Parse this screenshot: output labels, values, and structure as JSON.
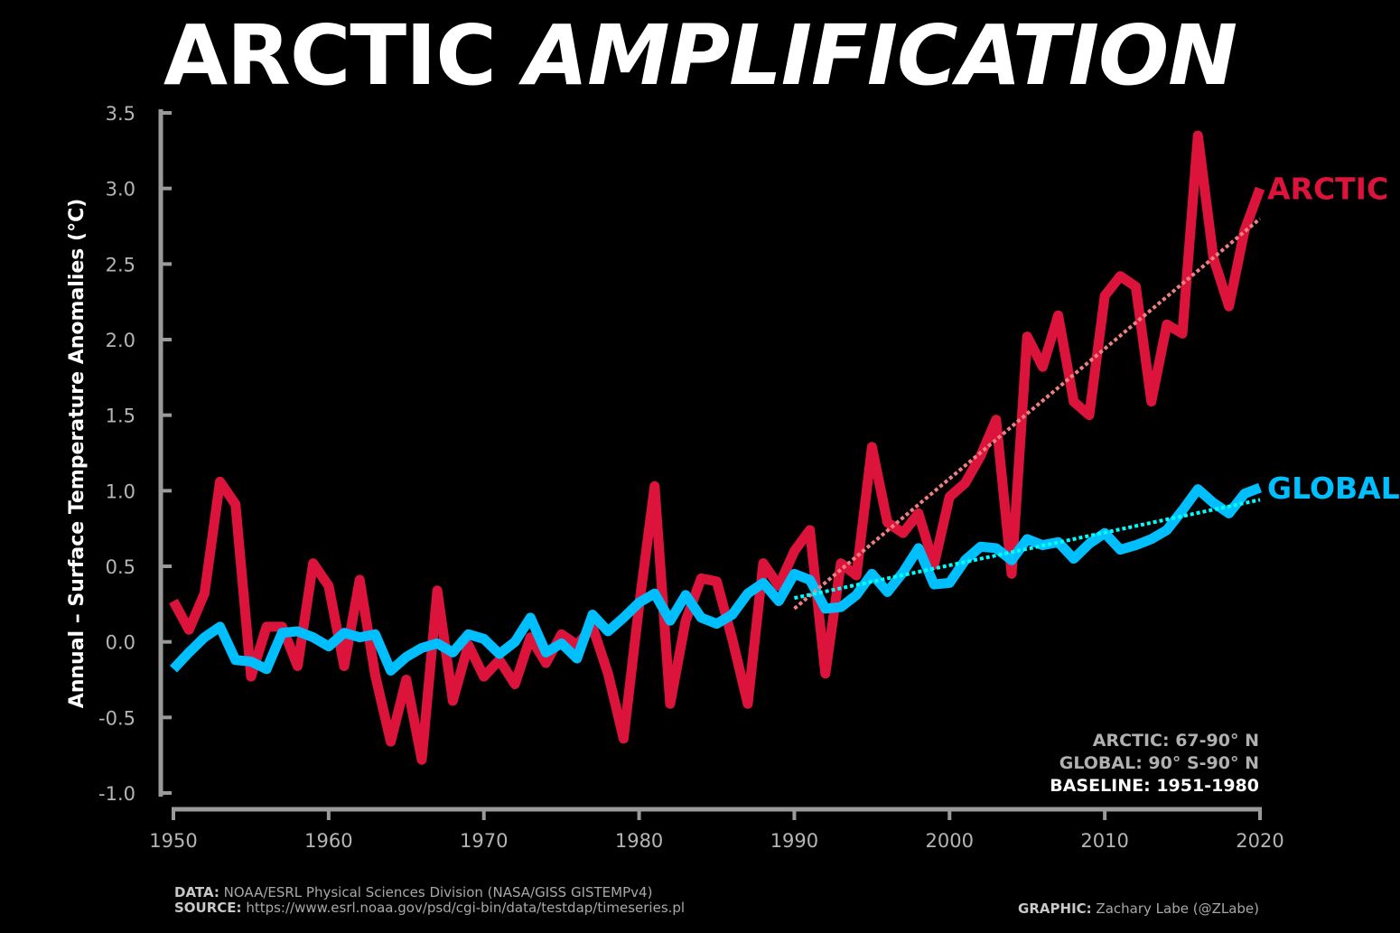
{
  "title": {
    "part1": "ARCTIC",
    "part2": "AMPLIFICATION"
  },
  "colors": {
    "background": "#000000",
    "arctic": "#dc143c",
    "global": "#00bfff",
    "arctic_trend": "#f08080",
    "global_trend": "#00ffff",
    "axis": "#9a9a9a"
  },
  "chart_data": {
    "type": "line",
    "ylabel": "Annual – Surface Temperature Anomalies (°C)",
    "xlabel": "",
    "xlim": [
      1950,
      2020
    ],
    "ylim": [
      -1.0,
      3.5
    ],
    "xticks": [
      "1950",
      "1960",
      "1970",
      "1980",
      "1990",
      "2000",
      "2010",
      "2020"
    ],
    "yticks": [
      "-1.0",
      "-0.5",
      "0.0",
      "0.5",
      "1.0",
      "1.5",
      "2.0",
      "2.5",
      "3.0",
      "3.5"
    ],
    "grid": false,
    "x_start": 1950,
    "series": [
      {
        "name": "ARCTIC",
        "color": "#dc143c",
        "values": [
          0.27,
          0.08,
          0.32,
          1.06,
          0.91,
          -0.23,
          0.1,
          0.1,
          -0.16,
          0.52,
          0.37,
          -0.16,
          0.41,
          -0.22,
          -0.66,
          -0.25,
          -0.78,
          0.34,
          -0.39,
          -0.02,
          -0.23,
          -0.12,
          -0.28,
          0.03,
          -0.14,
          0.05,
          -0.02,
          0.1,
          -0.21,
          -0.64,
          0.24,
          1.03,
          -0.41,
          0.14,
          0.42,
          0.4,
          0.02,
          -0.41,
          0.52,
          0.37,
          0.6,
          0.74,
          -0.21,
          0.52,
          0.44,
          1.29,
          0.79,
          0.72,
          0.85,
          0.51,
          0.96,
          1.05,
          1.23,
          1.47,
          0.45,
          2.02,
          1.82,
          2.16,
          1.59,
          1.5,
          2.29,
          2.42,
          2.35,
          1.59,
          2.1,
          2.04,
          3.35,
          2.54,
          2.22,
          2.72,
          3.0
        ]
      },
      {
        "name": "GLOBAL",
        "color": "#00bfff",
        "values": [
          -0.18,
          -0.07,
          0.03,
          0.1,
          -0.12,
          -0.13,
          -0.18,
          0.06,
          0.07,
          0.03,
          -0.03,
          0.06,
          0.03,
          0.05,
          -0.19,
          -0.1,
          -0.04,
          -0.01,
          -0.07,
          0.05,
          0.02,
          -0.08,
          0.0,
          0.16,
          -0.07,
          -0.01,
          -0.11,
          0.18,
          0.07,
          0.16,
          0.26,
          0.32,
          0.14,
          0.31,
          0.16,
          0.12,
          0.18,
          0.32,
          0.39,
          0.27,
          0.45,
          0.41,
          0.22,
          0.23,
          0.31,
          0.45,
          0.33,
          0.46,
          0.62,
          0.38,
          0.39,
          0.54,
          0.63,
          0.62,
          0.54,
          0.68,
          0.64,
          0.66,
          0.55,
          0.65,
          0.72,
          0.61,
          0.64,
          0.68,
          0.74,
          0.87,
          1.01,
          0.92,
          0.85,
          0.98,
          1.02
        ]
      }
    ],
    "trends": [
      {
        "series": "ARCTIC",
        "color": "#f08080",
        "x": [
          1990,
          2020
        ],
        "y": [
          0.22,
          2.8
        ],
        "style": "dotted"
      },
      {
        "series": "GLOBAL",
        "color": "#00ffff",
        "x": [
          1990,
          2020
        ],
        "y": [
          0.29,
          0.94
        ],
        "style": "dotted"
      }
    ],
    "legend": "inline-right"
  },
  "notes": {
    "arctic": "ARCTIC: 67-90° N",
    "global": "GLOBAL: 90° S-90° N",
    "baseline": "BASELINE: 1951-1980"
  },
  "footer": {
    "data_label": "DATA:",
    "data_text": " NOAA/ESRL Physical Sciences Division (NASA/GISS GISTEMPv4)",
    "source_label": "SOURCE:",
    "source_text": " https://www.esrl.noaa.gov/psd/cgi-bin/data/testdap/timeseries.pl",
    "graphic_label": "GRAPHIC:",
    "graphic_text": " Zachary Labe (@ZLabe)"
  }
}
